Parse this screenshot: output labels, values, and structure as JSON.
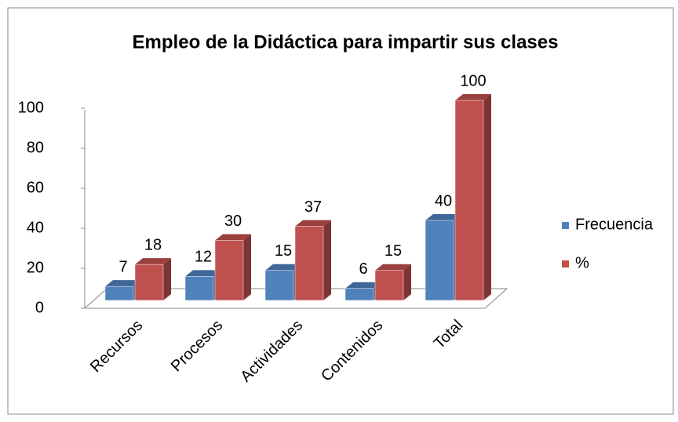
{
  "chart_data": {
    "type": "bar3d",
    "title": "Empleo de la Didáctica  para impartir sus clases",
    "categories": [
      "Recursos",
      "Procesos",
      "Actividades",
      "Contenidos",
      "Total"
    ],
    "series": [
      {
        "name": "Frecuencia",
        "color": "#4f81bd",
        "values": [
          7,
          12,
          15,
          6,
          40
        ]
      },
      {
        "name": "%",
        "color": "#c0504d",
        "values": [
          18,
          30,
          37,
          15,
          100
        ]
      }
    ],
    "ylim": [
      0,
      100
    ],
    "yticks": [
      0,
      20,
      40,
      60,
      80,
      100
    ],
    "legend": "right"
  }
}
